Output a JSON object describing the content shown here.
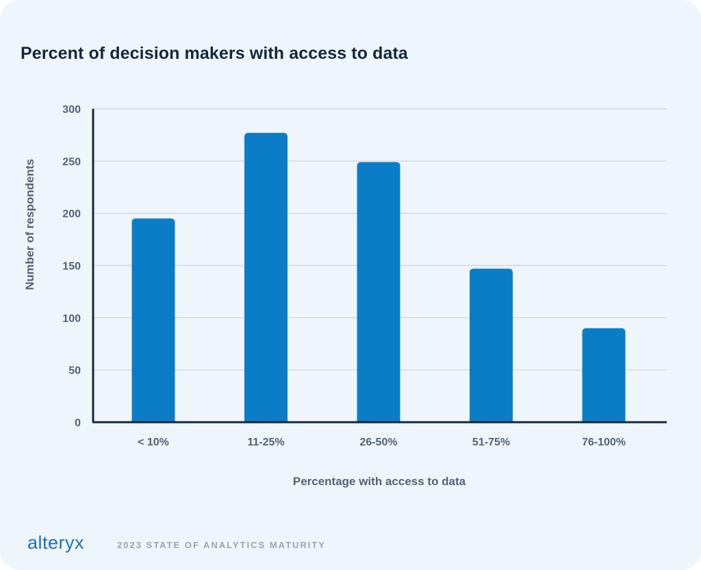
{
  "chart_data": {
    "type": "bar",
    "title": "Percent of decision makers with access to data",
    "xlabel": "Percentage with access to data",
    "ylabel": "Number of respondents",
    "categories": [
      "< 10%",
      "11-25%",
      "26-50%",
      "51-75%",
      "76-100%"
    ],
    "values": [
      195,
      277,
      249,
      147,
      90
    ],
    "ylim": [
      0,
      300
    ],
    "yticks": [
      "0",
      "50",
      "100",
      "150",
      "200",
      "250",
      "300"
    ],
    "bar_color": "#0b7dc6",
    "grid": true
  },
  "footer": {
    "logo": "alteryx",
    "text": "2023 STATE OF ANALYTICS MATURITY"
  }
}
